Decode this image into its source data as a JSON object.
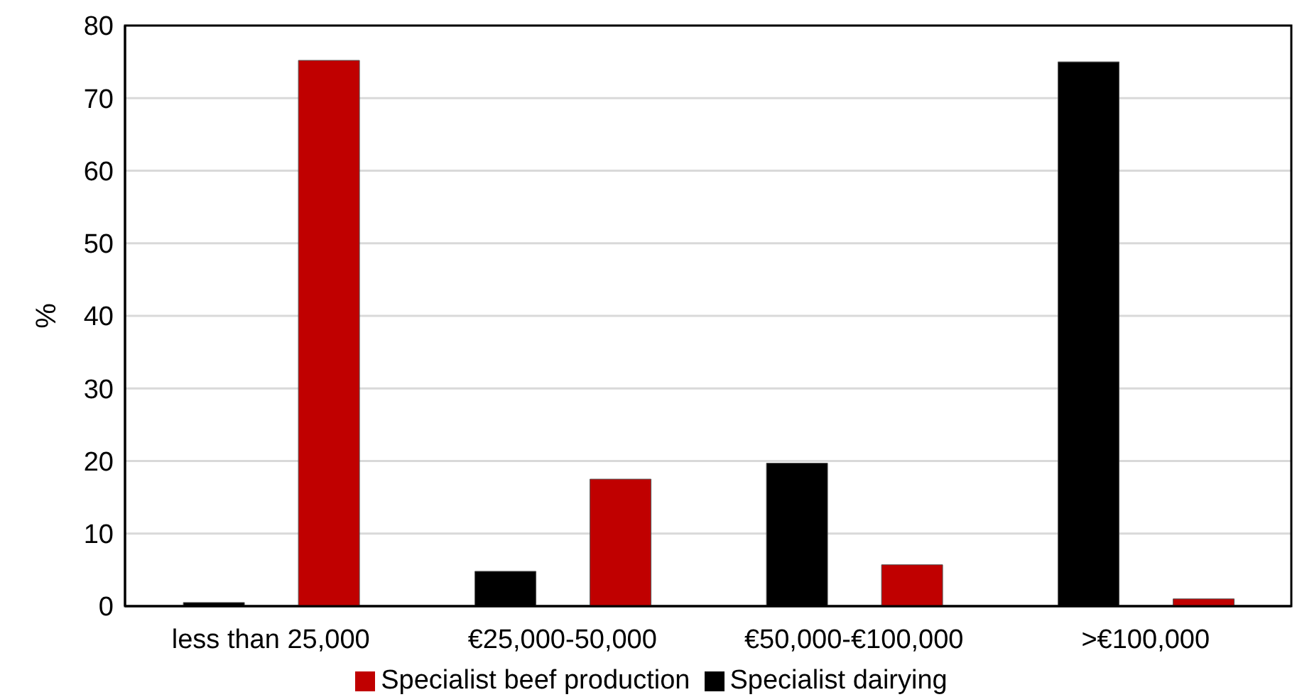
{
  "chart_data": {
    "type": "bar",
    "ylabel": "%",
    "categories": [
      "less than 25,000",
      "€25,000-50,000",
      "€50,000-€100,000",
      ">€100,000"
    ],
    "series": [
      {
        "name": "Specialist dairying",
        "color": "#000000",
        "values": [
          0.5,
          4.8,
          19.7,
          75
        ]
      },
      {
        "name": "Specialist beef production",
        "color": "#c00000",
        "values": [
          75.2,
          17.5,
          5.7,
          1
        ]
      }
    ],
    "ylim": [
      0,
      80
    ],
    "yticks": [
      0,
      10,
      20,
      30,
      40,
      50,
      60,
      70,
      80
    ],
    "grid": "y",
    "legend": "bottom"
  }
}
